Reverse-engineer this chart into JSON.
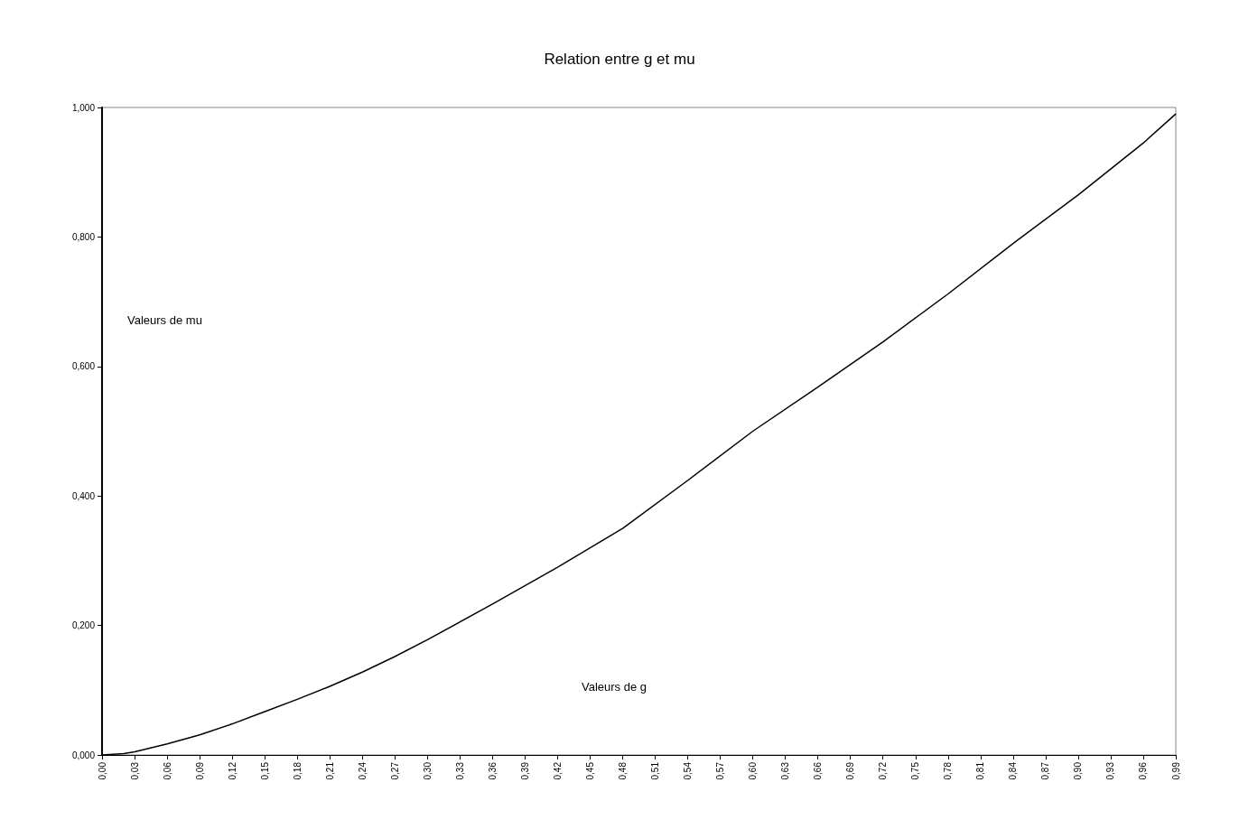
{
  "chart_data": {
    "type": "line",
    "title": "Relation entre g et mu",
    "xlabel": "Valeurs de g",
    "ylabel": "Valeurs de mu",
    "x": [
      0,
      0.02,
      0.03,
      0.06,
      0.09,
      0.12,
      0.15,
      0.18,
      0.21,
      0.24,
      0.27,
      0.3,
      0.36,
      0.42,
      0.48,
      0.54,
      0.6,
      0.66,
      0.72,
      0.78,
      0.84,
      0.9,
      0.96,
      0.99
    ],
    "series": [
      {
        "color": "#000000",
        "values": [
          0,
          0.002,
          0.005,
          0.017,
          0.031,
          0.048,
          0.067,
          0.086,
          0.106,
          0.128,
          0.152,
          0.178,
          0.233,
          0.29,
          0.35,
          0.424,
          0.5,
          0.568,
          0.638,
          0.712,
          0.79,
          0.865,
          0.945,
          0.99
        ]
      }
    ],
    "xlim": [
      0,
      0.99
    ],
    "xticks": [
      {
        "value": 0,
        "label": "0,00"
      },
      {
        "value": 0.03,
        "label": "0,03"
      },
      {
        "value": 0.06,
        "label": "0,06"
      },
      {
        "value": 0.09,
        "label": "0,09"
      },
      {
        "value": 0.12,
        "label": "0,12"
      },
      {
        "value": 0.15,
        "label": "0,15"
      },
      {
        "value": 0.18,
        "label": "0,18"
      },
      {
        "value": 0.21,
        "label": "0,21"
      },
      {
        "value": 0.24,
        "label": "0,24"
      },
      {
        "value": 0.27,
        "label": "0,27"
      },
      {
        "value": 0.3,
        "label": "0,30"
      },
      {
        "value": 0.33,
        "label": "0,33"
      },
      {
        "value": 0.36,
        "label": "0,36"
      },
      {
        "value": 0.39,
        "label": "0,39"
      },
      {
        "value": 0.42,
        "label": "0,42"
      },
      {
        "value": 0.45,
        "label": "0,45"
      },
      {
        "value": 0.48,
        "label": "0,48"
      },
      {
        "value": 0.51,
        "label": "0,51"
      },
      {
        "value": 0.54,
        "label": "0,54"
      },
      {
        "value": 0.57,
        "label": "0,57"
      },
      {
        "value": 0.6,
        "label": "0,60"
      },
      {
        "value": 0.63,
        "label": "0,63"
      },
      {
        "value": 0.66,
        "label": "0,66"
      },
      {
        "value": 0.69,
        "label": "0,69"
      },
      {
        "value": 0.72,
        "label": "0,72"
      },
      {
        "value": 0.75,
        "label": "0,75"
      },
      {
        "value": 0.78,
        "label": "0,78"
      },
      {
        "value": 0.81,
        "label": "0,81"
      },
      {
        "value": 0.84,
        "label": "0,84"
      },
      {
        "value": 0.87,
        "label": "0,87"
      },
      {
        "value": 0.9,
        "label": "0,90"
      },
      {
        "value": 0.93,
        "label": "0,93"
      },
      {
        "value": 0.96,
        "label": "0,96"
      },
      {
        "value": 0.99,
        "label": "0,99"
      }
    ],
    "ylim": [
      0,
      1
    ],
    "yticks": [
      {
        "value": 0,
        "label": "0,000"
      },
      {
        "value": 0.2,
        "label": "0,200"
      },
      {
        "value": 0.4,
        "label": "0,400"
      },
      {
        "value": 0.6,
        "label": "0,600"
      },
      {
        "value": 0.8,
        "label": "0,800"
      },
      {
        "value": 1,
        "label": "1,000"
      }
    ],
    "grid": false,
    "marker": "none",
    "line_style": "solid"
  }
}
